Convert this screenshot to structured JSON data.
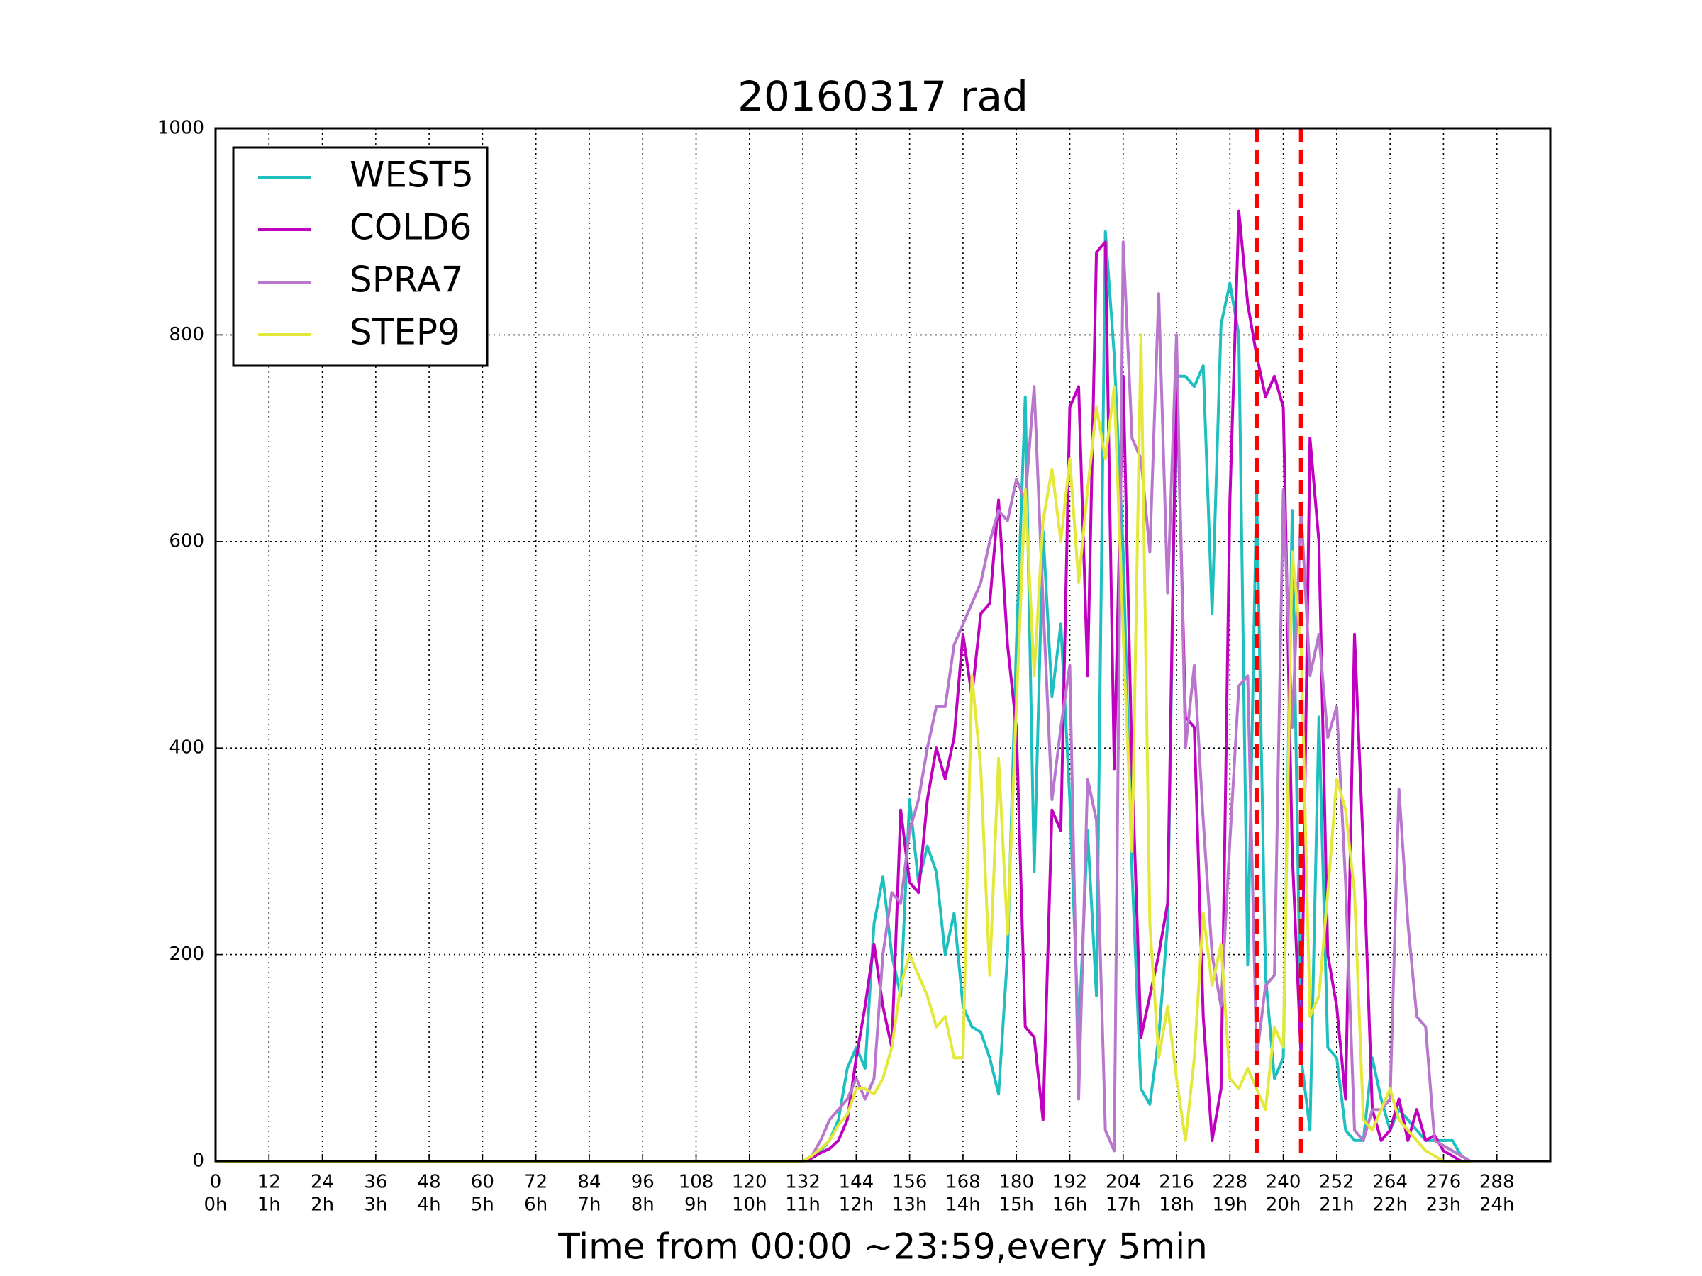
{
  "chart_data": {
    "type": "line",
    "title": "20160317 rad",
    "x_label": "Time from 00:00 ~23:59,every 5min",
    "x": [
      0,
      130,
      132,
      134,
      136,
      138,
      140,
      142,
      144,
      146,
      148,
      150,
      152,
      154,
      156,
      158,
      160,
      162,
      164,
      166,
      168,
      170,
      172,
      174,
      176,
      178,
      180,
      182,
      184,
      186,
      188,
      190,
      192,
      194,
      196,
      198,
      200,
      202,
      204,
      206,
      208,
      210,
      212,
      214,
      216,
      218,
      220,
      222,
      224,
      226,
      228,
      230,
      232,
      234,
      236,
      238,
      240,
      242,
      244,
      246,
      248,
      250,
      252,
      254,
      256,
      258,
      260,
      262,
      264,
      266,
      268,
      270,
      272,
      274,
      276,
      278,
      280,
      282
    ],
    "series": [
      {
        "name": "WEST5",
        "color": "#1fbfbf",
        "values": [
          0,
          0,
          0,
          3,
          10,
          20,
          40,
          90,
          110,
          90,
          230,
          275,
          200,
          160,
          350,
          270,
          305,
          280,
          200,
          240,
          150,
          130,
          125,
          100,
          65,
          200,
          500,
          740,
          280,
          610,
          450,
          520,
          350,
          120,
          320,
          160,
          900,
          780,
          590,
          280,
          70,
          55,
          120,
          230,
          760,
          760,
          750,
          770,
          530,
          810,
          850,
          800,
          190,
          650,
          180,
          80,
          100,
          630,
          100,
          30,
          430,
          110,
          100,
          30,
          20,
          20,
          100,
          60,
          30,
          50,
          40,
          30,
          20,
          20,
          20,
          20,
          5,
          0
        ]
      },
      {
        "name": "COLD6",
        "color": "#bf00bf",
        "values": [
          0,
          0,
          0,
          3,
          8,
          12,
          20,
          40,
          100,
          150,
          210,
          150,
          110,
          340,
          270,
          260,
          350,
          400,
          370,
          410,
          510,
          450,
          530,
          540,
          640,
          500,
          420,
          130,
          120,
          40,
          340,
          320,
          730,
          750,
          470,
          880,
          890,
          380,
          760,
          380,
          120,
          160,
          200,
          250,
          770,
          430,
          420,
          140,
          20,
          70,
          640,
          920,
          830,
          780,
          740,
          760,
          730,
          300,
          100,
          700,
          600,
          200,
          150,
          60,
          510,
          300,
          50,
          20,
          30,
          60,
          20,
          50,
          20,
          25,
          10,
          5,
          0,
          0
        ]
      },
      {
        "name": "SPRA7",
        "color": "#b877cc",
        "values": [
          0,
          0,
          0,
          5,
          20,
          40,
          50,
          60,
          80,
          60,
          80,
          200,
          260,
          250,
          320,
          350,
          400,
          440,
          440,
          500,
          520,
          540,
          560,
          600,
          630,
          620,
          660,
          640,
          750,
          540,
          350,
          420,
          480,
          60,
          370,
          330,
          30,
          10,
          890,
          700,
          680,
          590,
          840,
          550,
          800,
          400,
          480,
          330,
          200,
          150,
          310,
          460,
          470,
          100,
          170,
          180,
          650,
          420,
          630,
          470,
          510,
          410,
          440,
          270,
          30,
          20,
          50,
          50,
          60,
          360,
          230,
          140,
          130,
          20,
          15,
          10,
          5,
          0
        ]
      },
      {
        "name": "STEP9",
        "color": "#e3e83a",
        "values": [
          0,
          0,
          0,
          5,
          12,
          20,
          35,
          45,
          70,
          70,
          65,
          80,
          110,
          170,
          200,
          180,
          160,
          130,
          140,
          100,
          100,
          470,
          380,
          180,
          390,
          220,
          440,
          650,
          470,
          620,
          670,
          600,
          680,
          560,
          650,
          730,
          680,
          750,
          510,
          300,
          800,
          230,
          100,
          150,
          80,
          20,
          100,
          240,
          170,
          210,
          80,
          70,
          90,
          70,
          50,
          130,
          110,
          590,
          500,
          140,
          160,
          260,
          370,
          340,
          260,
          40,
          30,
          50,
          70,
          40,
          30,
          20,
          10,
          5,
          0,
          0,
          0,
          0
        ]
      }
    ],
    "vlines": [
      {
        "x": 234,
        "color": "#ff0000"
      },
      {
        "x": 244,
        "color": "#ff0000"
      }
    ],
    "xlim": [
      0,
      300
    ],
    "ylim": [
      0,
      1000
    ],
    "xticks": [
      0,
      12,
      24,
      36,
      48,
      60,
      72,
      84,
      96,
      108,
      120,
      132,
      144,
      156,
      168,
      180,
      192,
      204,
      216,
      228,
      240,
      252,
      264,
      276,
      288
    ],
    "xtick_hours": [
      "0h",
      "1h",
      "2h",
      "3h",
      "4h",
      "5h",
      "6h",
      "7h",
      "8h",
      "9h",
      "10h",
      "11h",
      "12h",
      "13h",
      "14h",
      "15h",
      "16h",
      "17h",
      "18h",
      "19h",
      "20h",
      "21h",
      "22h",
      "23h",
      "24h"
    ],
    "yticks": [
      0,
      200,
      400,
      600,
      800,
      1000
    ],
    "grid": true,
    "legend": "upper left"
  }
}
